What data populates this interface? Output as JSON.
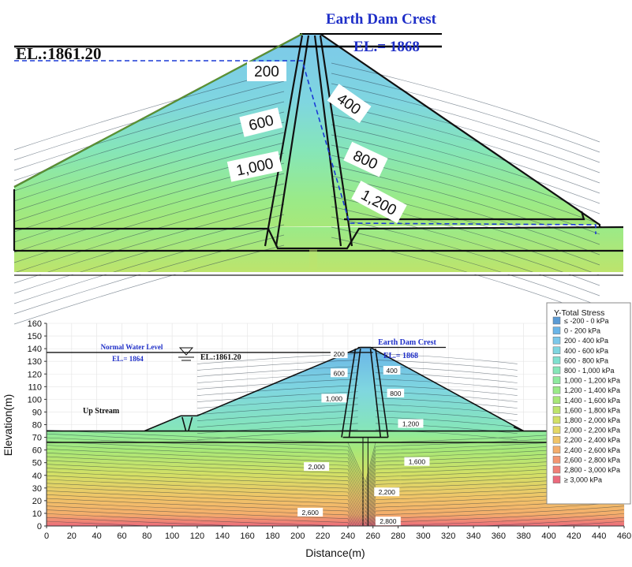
{
  "chart_data": [
    {
      "type": "heatmap",
      "panel": "zoomed dam crest detail",
      "annotations": {
        "crest_title": "Earth Dam Crest",
        "crest_elevation": "EL.= 1868",
        "water_level": "EL.:1861.20"
      },
      "contour_labels": [
        "200",
        "400",
        "600",
        "800",
        "1,000",
        "1,200"
      ]
    },
    {
      "type": "heatmap",
      "panel": "full dam cross-section",
      "xlabel": "Distance(m)",
      "ylabel": "Elevation(m)",
      "xlim": [
        0,
        460
      ],
      "ylim": [
        0,
        160
      ],
      "x_ticks": [
        0,
        20,
        40,
        60,
        80,
        100,
        120,
        140,
        160,
        180,
        200,
        220,
        240,
        260,
        280,
        300,
        320,
        340,
        360,
        380,
        400,
        420,
        440,
        460
      ],
      "y_ticks": [
        0,
        10,
        20,
        30,
        40,
        50,
        60,
        70,
        80,
        90,
        100,
        110,
        120,
        130,
        140,
        150,
        160
      ],
      "grid": true,
      "legend_position": "right",
      "annotations": {
        "normal_water_level": "Normal Water Level",
        "normal_water_el": "EL.= 1864",
        "water_level": "EL.:1861.20",
        "crest_title": "Earth Dam Crest",
        "crest_elevation": "EL.= 1868",
        "upstream": "Up Stream"
      },
      "geometry": {
        "crest_x": [
          250,
          258
        ],
        "crest_elevation": 141,
        "foundation_top": 75,
        "rock_line": 66,
        "upstream_toe_x": 78,
        "downstream_toe_x": 380,
        "cofferdam_x": [
          107,
          120
        ],
        "cofferdam_elevation": 87
      },
      "contours": [
        {
          "label": "200",
          "x": 233,
          "y": 135
        },
        {
          "label": "400",
          "x": 275,
          "y": 122
        },
        {
          "label": "600",
          "x": 233,
          "y": 120
        },
        {
          "label": "800",
          "x": 278,
          "y": 104
        },
        {
          "label": "1,000",
          "x": 229,
          "y": 100
        },
        {
          "label": "1,200",
          "x": 290,
          "y": 80
        },
        {
          "label": "1,600",
          "x": 295,
          "y": 50
        },
        {
          "label": "2,000",
          "x": 215,
          "y": 46
        },
        {
          "label": "2,200",
          "x": 271,
          "y": 26
        },
        {
          "label": "2,600",
          "x": 210,
          "y": 10
        },
        {
          "label": "2,800",
          "x": 272,
          "y": 3
        }
      ],
      "legend": {
        "title": "Y-Total Stress",
        "entries": [
          {
            "label": "≤ -200 - 0 kPa",
            "color": "#5b9bd5"
          },
          {
            "label": "0 - 200 kPa",
            "color": "#6ab5e8"
          },
          {
            "label": "200 - 400 kPa",
            "color": "#7cc8ea"
          },
          {
            "label": "400 - 600 kPa",
            "color": "#7fd6e0"
          },
          {
            "label": "600 - 800 kPa",
            "color": "#7fe0cf"
          },
          {
            "label": "800 - 1,000 kPa",
            "color": "#86e6b8"
          },
          {
            "label": "1,000 - 1,200 kPa",
            "color": "#8eea9f"
          },
          {
            "label": "1,200 - 1,400 kPa",
            "color": "#9aea88"
          },
          {
            "label": "1,400 - 1,600 kPa",
            "color": "#a8e878"
          },
          {
            "label": "1,600 - 1,800 kPa",
            "color": "#bde46c"
          },
          {
            "label": "1,800 - 2,000 kPa",
            "color": "#d2e066"
          },
          {
            "label": "2,000 - 2,200 kPa",
            "color": "#e4d866"
          },
          {
            "label": "2,200 - 2,400 kPa",
            "color": "#f0c468"
          },
          {
            "label": "2,400 - 2,600 kPa",
            "color": "#f4ad6c"
          },
          {
            "label": "2,600 - 2,800 kPa",
            "color": "#f39672"
          },
          {
            "label": "2,800 - 3,000 kPa",
            "color": "#f08078"
          },
          {
            "label": "≥ 3,000 kPa",
            "color": "#ec6a7c"
          }
        ]
      }
    }
  ]
}
